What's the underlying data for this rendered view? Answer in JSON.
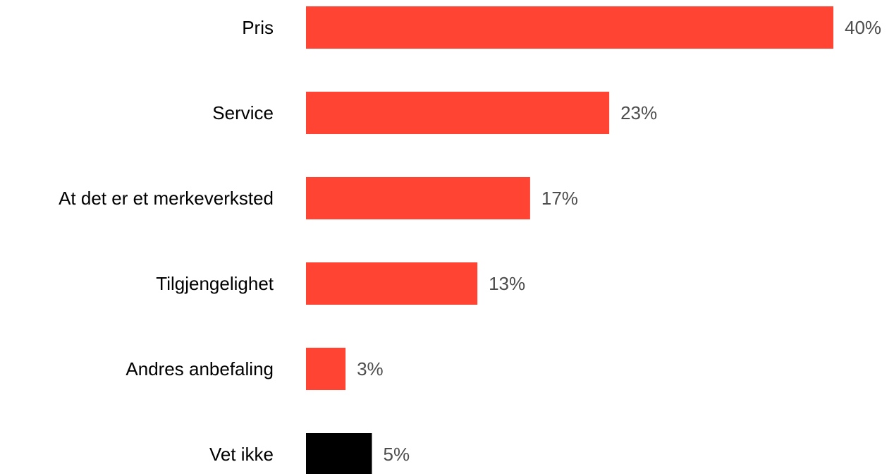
{
  "chart_data": {
    "type": "bar",
    "orientation": "horizontal",
    "categories": [
      "Pris",
      "Service",
      "At det er et merkeverksted",
      "Tilgjengelighet",
      "Andres anbefaling",
      "Vet ikke"
    ],
    "values": [
      40,
      23,
      17,
      13,
      3,
      5
    ],
    "value_labels": [
      "40%",
      "23%",
      "17%",
      "13%",
      "3%",
      "5%"
    ],
    "unit": "%",
    "bar_colors": [
      "#ff4433",
      "#ff4433",
      "#ff4433",
      "#ff4433",
      "#ff4433",
      "#000000"
    ],
    "value_label_color": "#4d4d4d",
    "category_label_color": "#000000",
    "xlim": [
      0,
      40
    ],
    "grid": false,
    "legend": "none"
  }
}
